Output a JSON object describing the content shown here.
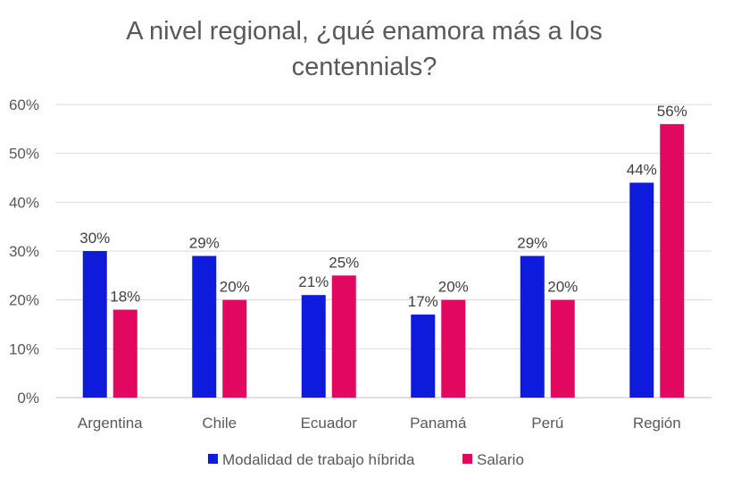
{
  "chart_data": {
    "type": "bar",
    "title_lines": [
      "A nivel regional, ¿qué enamora más a los",
      "centennials?"
    ],
    "categories": [
      "Argentina",
      "Chile",
      "Ecuador",
      "Panamá",
      "Perú",
      "Región"
    ],
    "series": [
      {
        "name": "Modalidad de trabajo híbrida",
        "color": "#0f1bdc",
        "values": [
          30,
          29,
          21,
          17,
          29,
          44
        ],
        "labels": [
          "30%",
          "29%",
          "21%",
          "17%",
          "29%",
          "44%"
        ]
      },
      {
        "name": "Salario",
        "color": "#e2075f",
        "values": [
          18,
          20,
          25,
          20,
          20,
          56
        ],
        "labels": [
          "18%",
          "20%",
          "25%",
          "20%",
          "20%",
          "56%"
        ]
      }
    ],
    "ylim": [
      0,
      60
    ],
    "yticks": [
      0,
      10,
      20,
      30,
      40,
      50,
      60
    ],
    "ytick_labels": [
      "0%",
      "10%",
      "20%",
      "30%",
      "40%",
      "50%",
      "60%"
    ],
    "grid": true,
    "legend_position": "bottom",
    "xlabel": "",
    "ylabel": ""
  }
}
